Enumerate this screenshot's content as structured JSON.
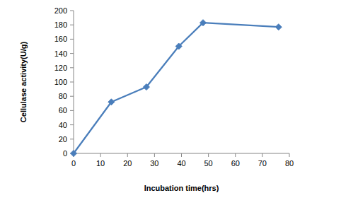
{
  "chart_data": {
    "type": "line",
    "x_label": "Incubation time(hrs)",
    "y_label": "Cellulase activity(U/g)",
    "x": [
      0,
      14,
      27,
      39,
      48,
      76
    ],
    "values": [
      0,
      72,
      93,
      150,
      183,
      177
    ],
    "xlim": [
      0,
      80
    ],
    "xticks": [
      0,
      10,
      20,
      30,
      40,
      50,
      60,
      70,
      80
    ],
    "ylim": [
      0,
      200
    ],
    "yticks": [
      0,
      20,
      40,
      60,
      80,
      100,
      120,
      140,
      160,
      180,
      200
    ],
    "grid": false,
    "color": "#4a7ebb",
    "marker": "diamond"
  }
}
